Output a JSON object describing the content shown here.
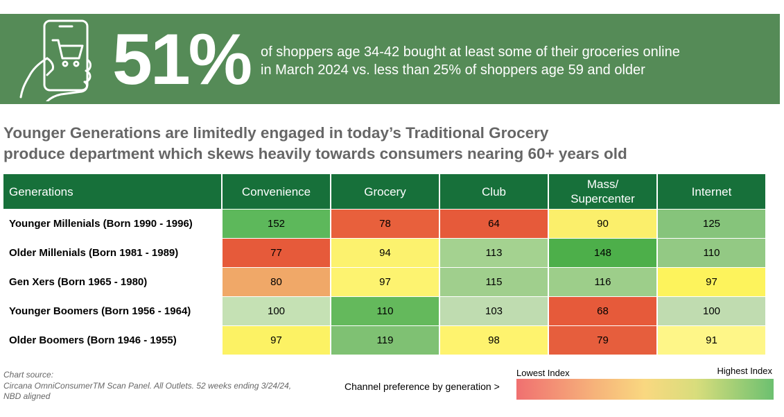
{
  "banner": {
    "stat": "51%",
    "lines": [
      "of shoppers age 34-42 bought at least some of their groceries online",
      "in March 2024 vs. less than 25% of shoppers age 59 and older"
    ]
  },
  "title": [
    "Younger Generations are limitedly engaged in today’s Traditional Grocery",
    "produce department which skews heavily towards consumers nearing 60+ years old"
  ],
  "table": {
    "header": [
      "Generations",
      "Convenience",
      "Grocery",
      "Club",
      "Mass/\nSupercenter",
      "Internet"
    ],
    "rows": [
      {
        "label": "Younger Millenials (Born 1990 - 1996)",
        "cells": [
          "152",
          "78",
          "64",
          "90",
          "125"
        ],
        "colors": [
          "#5db85b",
          "#e8603c",
          "#e65a3a",
          "#fbef6b",
          "#86c47b"
        ]
      },
      {
        "label": "Older Millenials (Born 1981 - 1989)",
        "cells": [
          "77",
          "94",
          "113",
          "148",
          "110"
        ],
        "colors": [
          "#e65a3a",
          "#fcf26e",
          "#a4d290",
          "#4daf4a",
          "#93c984"
        ]
      },
      {
        "label": "Gen Xers (Born 1965 - 1980)",
        "cells": [
          "80",
          "97",
          "115",
          "116",
          "97"
        ],
        "colors": [
          "#f0a868",
          "#fdf370",
          "#a0cf8d",
          "#9dce8a",
          "#fdf35c"
        ]
      },
      {
        "label": "Younger Boomers (Born 1956 - 1964)",
        "cells": [
          "100",
          "110",
          "103",
          "68",
          "100"
        ],
        "colors": [
          "#c5e1b4",
          "#64b95c",
          "#bfdcb0",
          "#e65a3a",
          "#c0dcb0"
        ]
      },
      {
        "label": "Older Boomers (Born 1946 - 1955)",
        "cells": [
          "97",
          "119",
          "98",
          "79",
          "91"
        ],
        "colors": [
          "#fcf264",
          "#7fc173",
          "#fef36e",
          "#e65e3d",
          "#fef688"
        ]
      }
    ]
  },
  "source": [
    "Chart source:",
    "Circana OmniConsumerTM Scan Panel. All Outlets. 52 weeks ending 3/24/24,",
    "NBD aligned"
  ],
  "legend": {
    "caption": "Channel preference by generation >",
    "low": "Lowest Index",
    "high": "Highest Index"
  }
}
